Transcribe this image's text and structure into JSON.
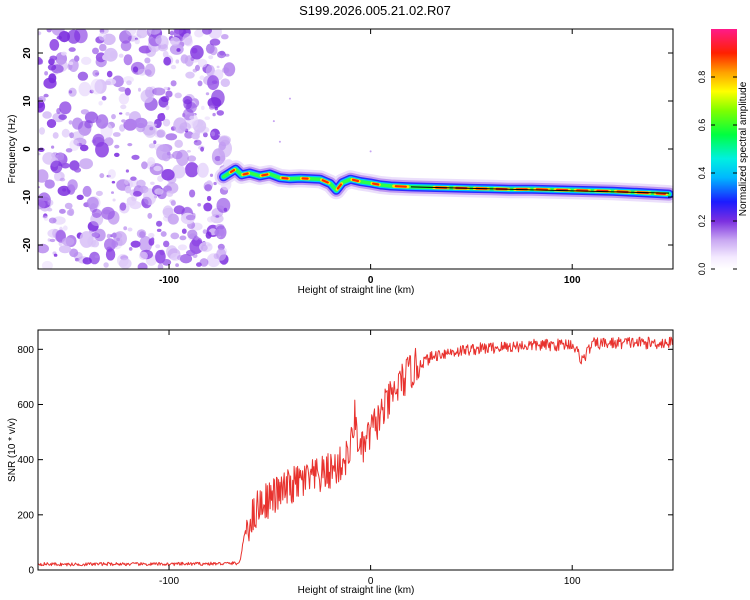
{
  "title": "S199.2026.005.21.02.R07",
  "chart_data": [
    {
      "type": "heatmap",
      "xlabel": "Height of straight line (km)",
      "ylabel": "Frequency (Hz)",
      "xlim": [
        -165,
        150
      ],
      "ylim": [
        -25,
        25
      ],
      "xticks": [
        -100,
        0,
        100
      ],
      "yticks": [
        20,
        10,
        0,
        -10,
        -20
      ],
      "noise_region_x": [
        -165,
        -72
      ],
      "track": {
        "x": [
          -73,
          -70,
          -67,
          -64,
          -60,
          -55,
          -50,
          -45,
          -40,
          -35,
          -30,
          -25,
          -20,
          -17,
          -14,
          -10,
          -5,
          0,
          5,
          10,
          20,
          30,
          40,
          50,
          60,
          70,
          80,
          90,
          100,
          110,
          120,
          130,
          140,
          148
        ],
        "y": [
          -5.8,
          -5.0,
          -4.2,
          -5.4,
          -5.0,
          -5.6,
          -5.2,
          -6.0,
          -6.2,
          -6.1,
          -6.2,
          -6.3,
          -7.2,
          -8.6,
          -7.0,
          -6.3,
          -6.8,
          -7.1,
          -7.5,
          -7.7,
          -7.9,
          -8.0,
          -8.1,
          -8.2,
          -8.3,
          -8.4,
          -8.4,
          -8.5,
          -8.6,
          -8.7,
          -8.8,
          -9.0,
          -9.2,
          -9.4
        ]
      },
      "colorbar": {
        "label": "Normalized spectral amplitude",
        "range": [
          0,
          1
        ],
        "ticks": [
          "0.0",
          "0.2",
          "0.4",
          "0.6",
          "0.8"
        ]
      }
    },
    {
      "type": "line",
      "xlabel": "Height of straight line (km)",
      "ylabel": "SNR (10 * v/v)",
      "xlim": [
        -165,
        150
      ],
      "ylim": [
        0,
        870
      ],
      "xticks": [
        -100,
        0,
        100
      ],
      "yticks": [
        0,
        200,
        400,
        600,
        800
      ],
      "color": "#e8322e",
      "series": [
        {
          "name": "SNR",
          "x": [
            -165,
            -150,
            -130,
            -110,
            -90,
            -75,
            -65,
            -62,
            -58,
            -55,
            -50,
            -45,
            -40,
            -35,
            -30,
            -25,
            -20,
            -15,
            -10,
            -8,
            -5,
            0,
            5,
            10,
            15,
            20,
            25,
            30,
            35,
            40,
            50,
            60,
            70,
            80,
            90,
            100,
            105,
            110,
            120,
            130,
            140,
            150
          ],
          "y": [
            22,
            20,
            22,
            21,
            22,
            23,
            25,
            150,
            200,
            240,
            260,
            280,
            300,
            320,
            330,
            340,
            360,
            380,
            430,
            560,
            420,
            500,
            560,
            620,
            680,
            720,
            750,
            770,
            785,
            790,
            800,
            805,
            810,
            815,
            815,
            820,
            760,
            820,
            822,
            825,
            822,
            825
          ]
        }
      ]
    }
  ]
}
